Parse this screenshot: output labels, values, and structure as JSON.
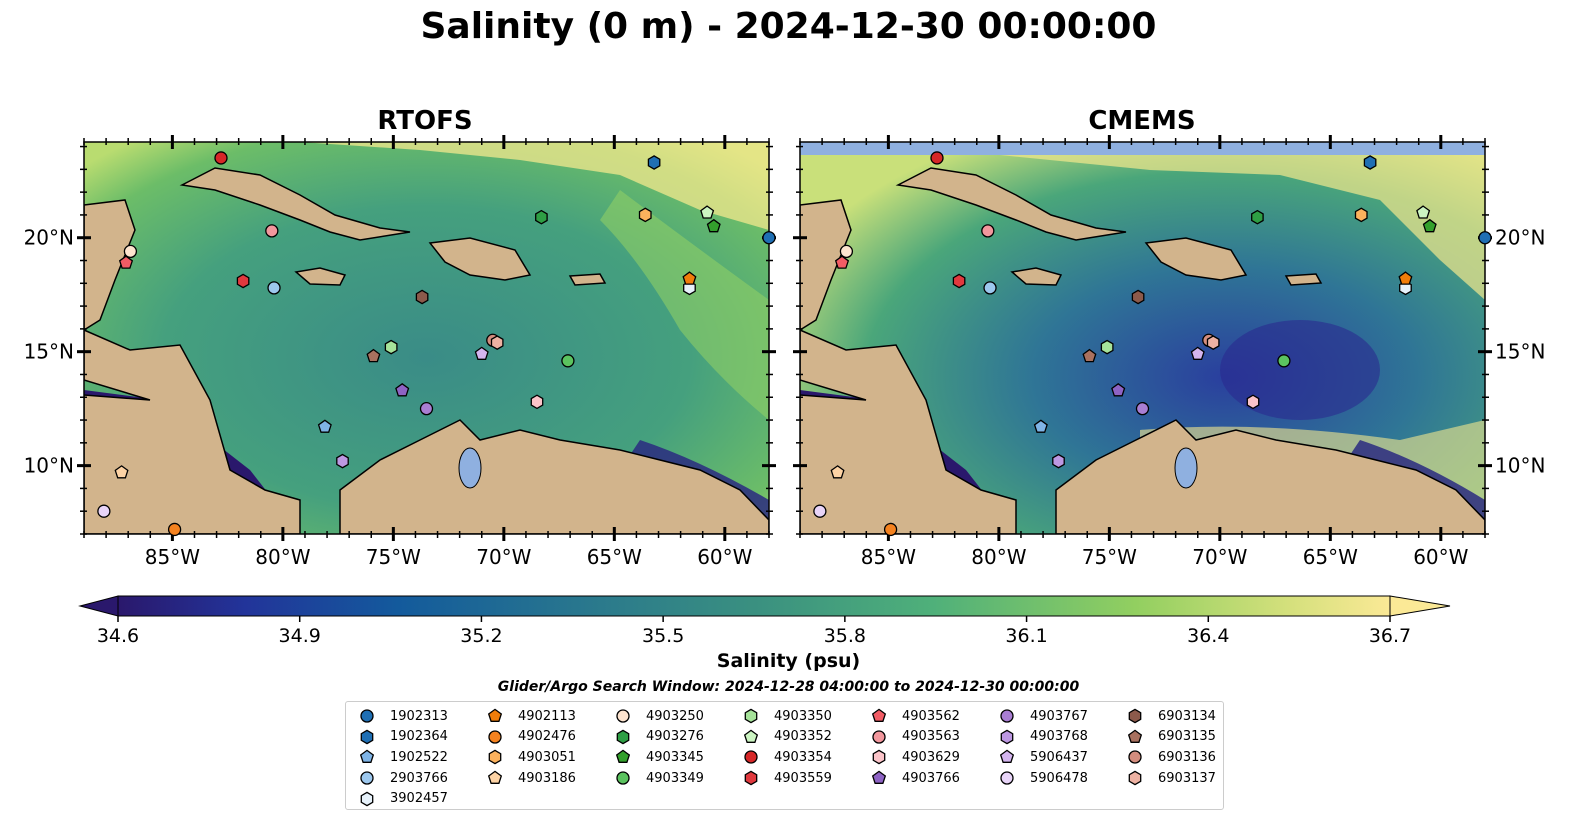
{
  "title": "Salinity (0 m) - 2024-12-30 00:00:00",
  "panels": [
    {
      "title": "RTOFS"
    },
    {
      "title": "CMEMS"
    }
  ],
  "colors": {
    "land": "#d2b48c",
    "lakes": "#8fb0e0",
    "coastline": "#000000",
    "cmap_low": "#2a1a6e",
    "cmap_mid": "#3a8f85",
    "cmap_high": "#fbe996",
    "cmems_no_data_band": "#8fb0e0"
  },
  "chart_data": {
    "type": "heatmap",
    "variable": "Salinity",
    "depth": "0 m",
    "time": "2024-12-30 00:00:00",
    "lon_range": [
      -89,
      -58
    ],
    "lat_range": [
      7,
      24.2
    ],
    "x_ticks": [
      "85°W",
      "80°W",
      "75°W",
      "70°W",
      "65°W",
      "60°W"
    ],
    "y_ticks": [
      "10°N",
      "15°N",
      "20°N"
    ],
    "colorbar": {
      "label": "Salinity (psu)",
      "vmin": 34.6,
      "vmax": 36.7,
      "ticks": [
        "34.6",
        "34.9",
        "35.2",
        "35.5",
        "35.8",
        "36.1",
        "36.4",
        "36.7"
      ],
      "extend": "both",
      "colormap": "haline"
    },
    "search_window": "Glider/Argo Search Window: 2024-12-28 04:00:00 to 2024-12-30 00:00:00",
    "floats": [
      {
        "id": "1902313",
        "color": "#1f6fb4",
        "marker": "circle",
        "lon": -58.0,
        "lat": 20.0
      },
      {
        "id": "1902364",
        "color": "#1f6fb4",
        "marker": "hexagon",
        "lon": -63.2,
        "lat": 23.3
      },
      {
        "id": "1902522",
        "color": "#7fb4e6",
        "marker": "pentagon",
        "lon": -78.1,
        "lat": 11.7
      },
      {
        "id": "2903766",
        "color": "#9dc8ee",
        "marker": "circle",
        "lon": -80.4,
        "lat": 17.8
      },
      {
        "id": "3902457",
        "color": "#e7f2fb",
        "marker": "hexagon",
        "lon": -61.6,
        "lat": 17.8
      },
      {
        "id": "4902113",
        "color": "#f07d0a",
        "marker": "pentagon",
        "lon": -61.6,
        "lat": 18.2
      },
      {
        "id": "4902476",
        "color": "#f5821f",
        "marker": "circle",
        "lon": -84.9,
        "lat": 7.2
      },
      {
        "id": "4903051",
        "color": "#fcb25d",
        "marker": "hexagon",
        "lon": -63.6,
        "lat": 21.0
      },
      {
        "id": "4903186",
        "color": "#fdd3a5",
        "marker": "pentagon",
        "lon": -87.3,
        "lat": 9.7
      },
      {
        "id": "4903250",
        "color": "#fde4cf",
        "marker": "circle",
        "lon": -86.9,
        "lat": 19.4
      },
      {
        "id": "4903276",
        "color": "#2e9e44",
        "marker": "hexagon",
        "lon": -68.3,
        "lat": 20.9
      },
      {
        "id": "4903345",
        "color": "#33a02c",
        "marker": "pentagon",
        "lon": -60.5,
        "lat": 20.5
      },
      {
        "id": "4903349",
        "color": "#5bc35f",
        "marker": "circle",
        "lon": -67.1,
        "lat": 14.6
      },
      {
        "id": "4903350",
        "color": "#a6e39a",
        "marker": "hexagon",
        "lon": -75.1,
        "lat": 15.2
      },
      {
        "id": "4903352",
        "color": "#ccf5c2",
        "marker": "pentagon",
        "lon": -60.8,
        "lat": 21.1
      },
      {
        "id": "4903354",
        "color": "#d62728",
        "marker": "circle",
        "lon": -82.8,
        "lat": 23.5
      },
      {
        "id": "4903559",
        "color": "#e0393e",
        "marker": "hexagon",
        "lon": -81.8,
        "lat": 18.1
      },
      {
        "id": "4903562",
        "color": "#f25c65",
        "marker": "pentagon",
        "lon": -87.1,
        "lat": 18.9
      },
      {
        "id": "4903563",
        "color": "#f2979d",
        "marker": "circle",
        "lon": -80.5,
        "lat": 20.3
      },
      {
        "id": "4903629",
        "color": "#fbc4c9",
        "marker": "hexagon",
        "lon": -68.5,
        "lat": 12.8
      },
      {
        "id": "4903766",
        "color": "#8e63c4",
        "marker": "pentagon",
        "lon": -74.6,
        "lat": 13.3
      },
      {
        "id": "4903767",
        "color": "#a97ed3",
        "marker": "circle",
        "lon": -73.5,
        "lat": 12.5
      },
      {
        "id": "4903768",
        "color": "#bd98e2",
        "marker": "hexagon",
        "lon": -77.3,
        "lat": 10.2
      },
      {
        "id": "5906437",
        "color": "#d4b5ef",
        "marker": "pentagon",
        "lon": -71.0,
        "lat": 14.9
      },
      {
        "id": "5906478",
        "color": "#e8d4f8",
        "marker": "circle",
        "lon": -88.1,
        "lat": 8.0
      },
      {
        "id": "6903134",
        "color": "#8c5a4b",
        "marker": "hexagon",
        "lon": -73.7,
        "lat": 17.4
      },
      {
        "id": "6903135",
        "color": "#a9715f",
        "marker": "pentagon",
        "lon": -75.9,
        "lat": 14.8
      },
      {
        "id": "6903136",
        "color": "#d48d7e",
        "marker": "circle",
        "lon": -70.5,
        "lat": 15.5
      },
      {
        "id": "6903137",
        "color": "#eeb2a3",
        "marker": "hexagon",
        "lon": -70.3,
        "lat": 15.4
      }
    ]
  }
}
